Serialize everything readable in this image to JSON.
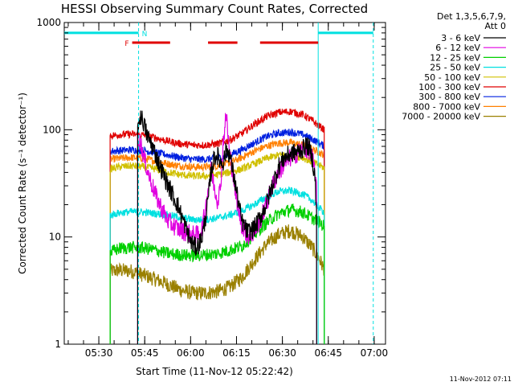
{
  "chart_data": {
    "type": "line",
    "title": "HESSI Observing Summary Count Rates, Corrected",
    "xlabel": "Start Time (11-Nov-12 05:22:42)",
    "ylabel": "Corrected Count Rate (s⁻¹ detector⁻¹)",
    "yscale": "log",
    "ylim": [
      1,
      1000
    ],
    "xlim_minutes": [
      -4,
      101
    ],
    "x_ticks": [
      {
        "label": "05:30",
        "minute": 7.3
      },
      {
        "label": "05:45",
        "minute": 22.3
      },
      {
        "label": "06:00",
        "minute": 37.3
      },
      {
        "label": "06:15",
        "minute": 52.3
      },
      {
        "label": "06:30",
        "minute": 67.3
      },
      {
        "label": "06:45",
        "minute": 82.3
      },
      {
        "label": "07:00",
        "minute": 97.3
      }
    ],
    "y_ticks": [
      {
        "label": "1",
        "value": 1
      },
      {
        "label": "10",
        "value": 10
      },
      {
        "label": "100",
        "value": 100
      },
      {
        "label": "1000",
        "value": 1000
      }
    ],
    "legend_header": [
      "Det 1,3,5,6,7,9,",
      "Att 0"
    ],
    "flag_labels": {
      "flare": "F",
      "night": "N"
    },
    "night_boundaries_minutes": [
      -4,
      20.3,
      79.0,
      97.0
    ],
    "night_level": 800,
    "flare_flag_level": 650,
    "flare_flag_segments_minutes": [
      [
        18.2,
        30.6
      ],
      [
        43.0,
        52.6
      ],
      [
        60.0,
        79.0
      ]
    ],
    "series": [
      {
        "name": "3 - 6 keV",
        "color": "#000000",
        "x": [
          20.0,
          21.0,
          22.0,
          23.0,
          25.0,
          27.0,
          30.0,
          33.0,
          35.0,
          37.0,
          38.0,
          39.0,
          40.0,
          41.0,
          42.0,
          43.0,
          44.0,
          45.0,
          46.0,
          47.0,
          48.0,
          49.0,
          50.0,
          52.0,
          54.0,
          56.0,
          58.0,
          60.0,
          62.0,
          64.0,
          66.0,
          68.0,
          70.0,
          72.0,
          74.0,
          75.0,
          76.0,
          77.0,
          78.0,
          78.5
        ],
        "y": [
          110,
          135,
          115,
          90,
          68,
          48,
          30,
          20,
          14,
          9.5,
          8.5,
          8,
          8.5,
          10,
          14,
          22,
          40,
          55,
          58,
          50,
          50,
          65,
          60,
          30,
          14,
          11,
          12,
          15,
          20,
          30,
          45,
          55,
          60,
          62,
          66,
          72,
          68,
          55,
          35,
          15
        ]
      },
      {
        "name": "6 - 12 keV",
        "color": "#e000e0",
        "x": [
          20.0,
          21.0,
          22.0,
          24.0,
          26.0,
          28.0,
          30.0,
          33.0,
          36.0,
          38.0,
          40.0,
          41.0,
          42.0,
          43.0,
          44.0,
          45.0,
          46.0,
          47.0,
          48.0,
          49.0,
          50.0,
          51.0,
          52.0,
          54.0,
          56.0,
          58.0,
          60.0,
          62.0,
          64.0,
          66.0,
          68.0,
          70.0,
          72.0,
          74.0,
          76.0,
          77.0,
          78.0,
          78.5
        ],
        "y": [
          85,
          75,
          55,
          35,
          24,
          18,
          14,
          12,
          11,
          10.5,
          10.5,
          12,
          17,
          28,
          42,
          30,
          22,
          28,
          80,
          140,
          60,
          42,
          25,
          13,
          10,
          11,
          14,
          20,
          30,
          40,
          48,
          55,
          60,
          66,
          65,
          55,
          40,
          25
        ]
      },
      {
        "name": "12 - 25 keV",
        "color": "#00d000",
        "x": [
          11.0,
          14.0,
          18.0,
          22.0,
          26.0,
          30.0,
          34.0,
          38.0,
          42.0,
          46.0,
          50.0,
          54.0,
          58.0,
          62.0,
          66.0,
          70.0,
          74.0,
          77.0,
          79.0,
          81.0
        ],
        "y": [
          7.2,
          7.8,
          8.0,
          7.9,
          7.5,
          7.0,
          6.8,
          6.7,
          6.8,
          7.0,
          7.5,
          8.2,
          10.5,
          13.5,
          16.5,
          18.0,
          17.0,
          15.0,
          14.0,
          12.5
        ]
      },
      {
        "name": "25 - 50 keV",
        "color": "#00e0e0",
        "x": [
          11.0,
          14.0,
          18.0,
          22.0,
          26.0,
          30.0,
          34.0,
          38.0,
          42.0,
          46.0,
          50.0,
          54.0,
          58.0,
          62.0,
          66.0,
          70.0,
          74.0,
          77.0,
          79.0,
          81.0
        ],
        "y": [
          16,
          16.8,
          17.2,
          17.0,
          16.5,
          16.0,
          15.2,
          14.5,
          14.5,
          15.0,
          16.0,
          17.5,
          20.0,
          23.5,
          26.5,
          27.0,
          25.0,
          22.0,
          19.0,
          17.0
        ]
      },
      {
        "name": "50 - 100 keV",
        "color": "#d0c000",
        "x": [
          11.0,
          14.0,
          18.0,
          22.0,
          26.0,
          30.0,
          34.0,
          38.0,
          42.0,
          46.0,
          50.0,
          54.0,
          58.0,
          62.0,
          66.0,
          70.0,
          74.0,
          77.0,
          79.0,
          81.0
        ],
        "y": [
          43,
          45,
          46,
          45,
          43,
          40,
          38,
          37,
          37,
          38,
          40,
          43,
          48,
          54,
          58,
          58,
          55,
          50,
          47,
          44
        ]
      },
      {
        "name": "100 - 300 keV",
        "color": "#e00000",
        "x": [
          11.0,
          14.0,
          18.0,
          22.0,
          26.0,
          30.0,
          34.0,
          38.0,
          42.0,
          46.0,
          50.0,
          54.0,
          58.0,
          62.0,
          66.0,
          70.0,
          74.0,
          77.0,
          79.0,
          81.0
        ],
        "y": [
          88,
          90,
          91,
          89,
          84,
          78,
          74,
          72,
          72,
          74,
          80,
          92,
          112,
          132,
          145,
          148,
          138,
          122,
          110,
          100
        ]
      },
      {
        "name": "300 - 800 keV",
        "color": "#0020e0",
        "x": [
          11.0,
          14.0,
          18.0,
          22.0,
          26.0,
          30.0,
          34.0,
          38.0,
          42.0,
          46.0,
          50.0,
          54.0,
          58.0,
          62.0,
          66.0,
          70.0,
          74.0,
          77.0,
          79.0,
          81.0
        ],
        "y": [
          63,
          64,
          65,
          64,
          61,
          58,
          55,
          53,
          53,
          54,
          58,
          65,
          75,
          86,
          93,
          95,
          90,
          82,
          76,
          70
        ]
      },
      {
        "name": "800 - 7000 keV",
        "color": "#ff8000",
        "x": [
          11.0,
          14.0,
          18.0,
          22.0,
          26.0,
          30.0,
          34.0,
          38.0,
          42.0,
          46.0,
          50.0,
          54.0,
          58.0,
          62.0,
          66.0,
          70.0,
          74.0,
          77.0,
          79.0,
          81.0
        ],
        "y": [
          53,
          54,
          55,
          54,
          51,
          48,
          46,
          45,
          45,
          46,
          49,
          55,
          63,
          70,
          75,
          76,
          72,
          66,
          62,
          58
        ]
      },
      {
        "name": "7000 - 20000 keV",
        "color": "#9a8000",
        "x": [
          11.0,
          14.0,
          18.0,
          22.0,
          26.0,
          30.0,
          34.0,
          38.0,
          42.0,
          46.0,
          50.0,
          54.0,
          58.0,
          62.0,
          66.0,
          70.0,
          74.0,
          77.0,
          79.0,
          81.0
        ],
        "y": [
          4.8,
          4.9,
          4.8,
          4.4,
          4.0,
          3.6,
          3.2,
          3.0,
          3.0,
          3.1,
          3.4,
          4.2,
          6.0,
          8.5,
          10.5,
          11.5,
          10.0,
          8.0,
          6.5,
          5.0
        ]
      }
    ]
  },
  "footer_date": "11-Nov-2012 07:11"
}
